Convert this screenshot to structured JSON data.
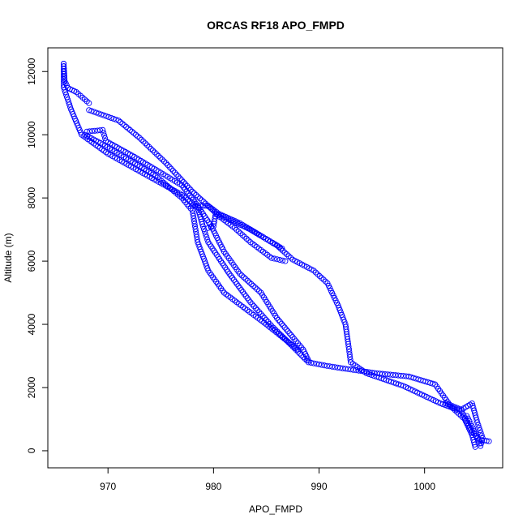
{
  "chart_data": {
    "type": "scatter",
    "title": "ORCAS RF18 APO_FMPD",
    "xlabel": "APO_FMPD",
    "ylabel": "Altitude (m)",
    "xlim": [
      964.3,
      1007.4
    ],
    "ylim": [
      -540,
      12750
    ],
    "xticks": [
      970,
      980,
      990,
      1000
    ],
    "yticks": [
      0,
      2000,
      4000,
      6000,
      8000,
      10000,
      12000
    ],
    "grid": false,
    "legend": "none",
    "marker": "open-circle",
    "color": "#0000ff",
    "series": [
      {
        "description_segments": [
          [
            [
              965.8,
              12250
            ],
            [
              965.9,
              11700
            ],
            [
              966.2,
              11480
            ],
            [
              967.0,
              11350
            ],
            [
              968.2,
              11000
            ]
          ],
          [
            [
              968.2,
              10780
            ],
            [
              971.0,
              10450
            ],
            [
              973.0,
              9900
            ],
            [
              975.5,
              9100
            ],
            [
              978.0,
              8200
            ],
            [
              980.3,
              7500
            ],
            [
              983.5,
              7000
            ],
            [
              986.0,
              6500
            ],
            [
              987.5,
              6050
            ],
            [
              989.5,
              5700
            ],
            [
              990.8,
              5300
            ],
            [
              991.8,
              4600
            ],
            [
              992.5,
              4000
            ],
            [
              992.8,
              3300
            ],
            [
              993.0,
              2800
            ],
            [
              994.5,
              2450
            ],
            [
              998.0,
              2050
            ],
            [
              1001.5,
              1500
            ],
            [
              1003.5,
              1250
            ],
            [
              1004.5,
              600
            ],
            [
              1005.2,
              350
            ],
            [
              1006.1,
              300
            ]
          ],
          [
            [
              965.8,
              12250
            ],
            [
              965.8,
              11500
            ],
            [
              966.5,
              10800
            ],
            [
              967.5,
              10000
            ],
            [
              970.0,
              9400
            ],
            [
              973.5,
              8750
            ],
            [
              977.0,
              8100
            ],
            [
              978.5,
              7700
            ],
            [
              979.0,
              7100
            ],
            [
              979.5,
              6600
            ],
            [
              981.5,
              5600
            ],
            [
              983.5,
              4700
            ],
            [
              985.5,
              3950
            ],
            [
              987.5,
              3300
            ],
            [
              989.0,
              2800
            ],
            [
              990.5,
              2700
            ],
            [
              992.0,
              2620
            ],
            [
              995.5,
              2450
            ],
            [
              998.5,
              2350
            ],
            [
              1001.0,
              2100
            ],
            [
              1002.5,
              1400
            ],
            [
              1003.8,
              1000
            ],
            [
              1004.5,
              500
            ],
            [
              1004.8,
              120
            ]
          ],
          [
            [
              968.0,
              10100
            ],
            [
              969.5,
              10150
            ],
            [
              969.8,
              9800
            ],
            [
              972.5,
              9300
            ],
            [
              975.0,
              8800
            ],
            [
              977.0,
              8400
            ],
            [
              978.5,
              7750
            ],
            [
              979.8,
              7100
            ],
            [
              981.0,
              6300
            ],
            [
              982.5,
              5600
            ],
            [
              984.5,
              5000
            ],
            [
              986.0,
              4200
            ],
            [
              987.5,
              3600
            ],
            [
              988.5,
              3200
            ],
            [
              989.0,
              2850
            ]
          ],
          [
            [
              967.8,
              10000
            ],
            [
              969.5,
              9700
            ],
            [
              971.5,
              9300
            ],
            [
              974.5,
              8700
            ],
            [
              977.0,
              8000
            ],
            [
              978.0,
              7600
            ],
            [
              978.5,
              6600
            ],
            [
              979.5,
              5700
            ],
            [
              981.0,
              5000
            ],
            [
              983.0,
              4500
            ],
            [
              985.0,
              4000
            ],
            [
              988.0,
              3200
            ]
          ],
          [
            [
              979.5,
              7050
            ],
            [
              980.0,
              7100
            ],
            [
              980.2,
              7500
            ],
            [
              982.0,
              7050
            ],
            [
              983.5,
              6600
            ],
            [
              985.5,
              6100
            ],
            [
              986.8,
              6000
            ]
          ],
          [
            [
              978.0,
              7750
            ],
            [
              979.5,
              7750
            ],
            [
              980.5,
              7500
            ],
            [
              982.5,
              7200
            ],
            [
              984.5,
              6800
            ],
            [
              986.5,
              6400
            ]
          ],
          [
            [
              1002.0,
              1500
            ],
            [
              1003.5,
              1300
            ],
            [
              1004.5,
              1500
            ],
            [
              1005.0,
              900
            ],
            [
              1005.5,
              400
            ],
            [
              1005.3,
              150
            ],
            [
              1004.6,
              700
            ],
            [
              1004.0,
              1100
            ]
          ]
        ]
      }
    ]
  }
}
